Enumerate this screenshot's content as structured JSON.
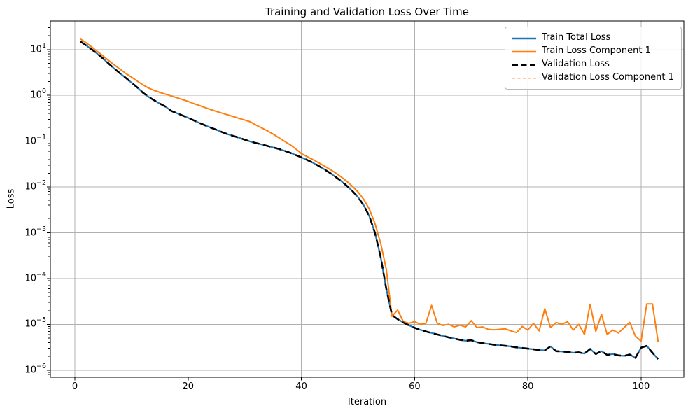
{
  "figure": {
    "title": "Training and Validation Loss Over Time",
    "xlabel": "Iteration",
    "ylabel": "Loss"
  },
  "chart_data": {
    "type": "line",
    "title": "Training and Validation Loss Over Time",
    "xlabel": "Iteration",
    "ylabel": "Loss",
    "grid": true,
    "legend_position": "upper right",
    "colors": {
      "grid": "#b0b0b0",
      "axis": "#000000",
      "blue": "#1f77b4",
      "orange": "#ff7f0e"
    },
    "x_axis": {
      "ticks": [
        0,
        20,
        40,
        60,
        80,
        100
      ],
      "lim": [
        -4.33,
        107.55
      ]
    },
    "y_axis": {
      "scale": "log",
      "tick_exponents": [
        1,
        0,
        -1,
        -2,
        -3,
        -4,
        -5,
        -6
      ],
      "lim": [
        7e-07,
        42
      ]
    },
    "x": [
      1,
      2,
      3,
      4,
      5,
      6,
      7,
      8,
      9,
      10,
      11,
      12,
      13,
      14,
      15,
      16,
      17,
      18,
      19,
      20,
      21,
      22,
      23,
      24,
      25,
      26,
      27,
      28,
      29,
      30,
      31,
      32,
      33,
      34,
      35,
      36,
      37,
      38,
      39,
      40,
      41,
      42,
      43,
      44,
      45,
      46,
      47,
      48,
      49,
      50,
      51,
      52,
      53,
      54,
      55,
      56,
      57,
      58,
      59,
      60,
      61,
      62,
      63,
      64,
      65,
      66,
      67,
      68,
      69,
      70,
      71,
      72,
      73,
      74,
      75,
      76,
      77,
      78,
      79,
      80,
      81,
      82,
      83,
      84,
      85,
      86,
      87,
      88,
      89,
      90,
      91,
      92,
      93,
      94,
      95,
      96,
      97,
      98,
      99,
      100,
      101,
      102,
      103
    ],
    "series": [
      {
        "name": "Train Total Loss",
        "color": "#1f77b4",
        "style": "solid",
        "width": 2.2,
        "values": [
          15.0,
          12.3,
          10.0,
          8.0,
          6.3,
          4.9,
          3.8,
          3.0,
          2.4,
          1.9,
          1.5,
          1.15,
          0.93,
          0.78,
          0.66,
          0.57,
          0.46,
          0.41,
          0.365,
          0.325,
          0.285,
          0.25,
          0.222,
          0.198,
          0.177,
          0.158,
          0.142,
          0.13,
          0.119,
          0.108,
          0.098,
          0.091,
          0.085,
          0.079,
          0.073,
          0.068,
          0.062,
          0.056,
          0.05,
          0.0445,
          0.039,
          0.034,
          0.029,
          0.0245,
          0.0205,
          0.0168,
          0.0136,
          0.0107,
          0.0082,
          0.006,
          0.004,
          0.0023,
          0.001,
          0.0003,
          6e-05,
          1.6e-05,
          1.3e-05,
          1.1e-05,
          9.5e-06,
          8.4e-06,
          7.6e-06,
          7e-06,
          6.5e-06,
          6e-06,
          5.6e-06,
          5.2e-06,
          4.9e-06,
          4.6e-06,
          4.4e-06,
          4.5e-06,
          4.1e-06,
          3.9e-06,
          3.75e-06,
          3.6e-06,
          3.5e-06,
          3.4e-06,
          3.3e-06,
          3.15e-06,
          3.05e-06,
          2.95e-06,
          2.85e-06,
          2.75e-06,
          2.7e-06,
          3.3e-06,
          2.6e-06,
          2.55e-06,
          2.5e-06,
          2.4e-06,
          2.45e-06,
          2.3e-06,
          2.9e-06,
          2.25e-06,
          2.6e-06,
          2.15e-06,
          2.25e-06,
          2.1e-06,
          2.05e-06,
          2.2e-06,
          1.85e-06,
          3.1e-06,
          3.4e-06,
          2.4e-06,
          1.75e-06
        ]
      },
      {
        "name": "Train Loss Component 1",
        "color": "#ff7f0e",
        "style": "solid",
        "width": 2.0,
        "values": [
          17.0,
          14.0,
          11.3,
          9.0,
          7.2,
          5.7,
          4.6,
          3.7,
          3.0,
          2.5,
          2.05,
          1.7,
          1.45,
          1.28,
          1.16,
          1.06,
          0.97,
          0.89,
          0.81,
          0.74,
          0.66,
          0.6,
          0.54,
          0.49,
          0.445,
          0.41,
          0.375,
          0.345,
          0.315,
          0.29,
          0.265,
          0.225,
          0.195,
          0.168,
          0.143,
          0.12,
          0.1,
          0.084,
          0.068,
          0.054,
          0.046,
          0.04,
          0.034,
          0.029,
          0.0245,
          0.0205,
          0.0168,
          0.0134,
          0.0104,
          0.0078,
          0.0054,
          0.0033,
          0.0016,
          0.0006,
          0.00016,
          1.5e-05,
          2.05e-05,
          1.15e-05,
          1.05e-05,
          1.15e-05,
          1e-05,
          1.05e-05,
          2.6e-05,
          1.05e-05,
          9.5e-06,
          1e-05,
          8.8e-06,
          9.6e-06,
          8.8e-06,
          1.2e-05,
          8.5e-06,
          8.8e-06,
          7.8e-06,
          7.6e-06,
          7.8e-06,
          8e-06,
          7.2e-06,
          6.6e-06,
          9e-06,
          7.5e-06,
          1.05e-05,
          7.2e-06,
          2.2e-05,
          8.5e-06,
          1.1e-05,
          1e-05,
          1.15e-05,
          7.5e-06,
          1e-05,
          6e-06,
          2.75e-05,
          7e-06,
          1.65e-05,
          6e-06,
          7.5e-06,
          6.5e-06,
          8.5e-06,
          1.1e-05,
          5.5e-06,
          4.3e-06,
          2.8e-05,
          2.8e-05,
          4.2e-06
        ]
      },
      {
        "name": "Validation Loss",
        "color": "#000000",
        "style": "dashed",
        "width": 2.6,
        "values": [
          15.0,
          12.3,
          10.0,
          8.0,
          6.3,
          4.9,
          3.8,
          3.0,
          2.4,
          1.9,
          1.5,
          1.15,
          0.93,
          0.78,
          0.66,
          0.57,
          0.46,
          0.41,
          0.365,
          0.325,
          0.285,
          0.25,
          0.222,
          0.198,
          0.177,
          0.158,
          0.142,
          0.13,
          0.119,
          0.108,
          0.098,
          0.091,
          0.085,
          0.079,
          0.073,
          0.068,
          0.062,
          0.056,
          0.05,
          0.0445,
          0.039,
          0.034,
          0.029,
          0.0245,
          0.0205,
          0.0168,
          0.0136,
          0.0107,
          0.0082,
          0.006,
          0.004,
          0.0023,
          0.001,
          0.0003,
          6e-05,
          1.6e-05,
          1.3e-05,
          1.1e-05,
          9.5e-06,
          8.4e-06,
          7.6e-06,
          7e-06,
          6.5e-06,
          6e-06,
          5.6e-06,
          5.2e-06,
          4.9e-06,
          4.6e-06,
          4.4e-06,
          4.5e-06,
          4.1e-06,
          3.9e-06,
          3.75e-06,
          3.6e-06,
          3.5e-06,
          3.4e-06,
          3.3e-06,
          3.15e-06,
          3.05e-06,
          2.95e-06,
          2.85e-06,
          2.75e-06,
          2.7e-06,
          3.3e-06,
          2.6e-06,
          2.55e-06,
          2.5e-06,
          2.4e-06,
          2.45e-06,
          2.3e-06,
          2.9e-06,
          2.25e-06,
          2.6e-06,
          2.15e-06,
          2.25e-06,
          2.1e-06,
          2.05e-06,
          2.2e-06,
          1.85e-06,
          3.1e-06,
          3.4e-06,
          2.4e-06,
          1.75e-06
        ]
      },
      {
        "name": "Validation Loss Component 1",
        "color": "#ff7f0e",
        "opacity": 0.45,
        "style": "dashed-fine",
        "width": 1.4,
        "values": [
          17.0,
          14.0,
          11.3,
          9.0,
          7.2,
          5.7,
          4.6,
          3.7,
          3.0,
          2.5,
          2.05,
          1.7,
          1.45,
          1.28,
          1.16,
          1.06,
          0.97,
          0.89,
          0.81,
          0.74,
          0.66,
          0.6,
          0.54,
          0.49,
          0.445,
          0.41,
          0.375,
          0.345,
          0.315,
          0.29,
          0.265,
          0.225,
          0.195,
          0.168,
          0.143,
          0.12,
          0.1,
          0.084,
          0.068,
          0.054,
          0.046,
          0.04,
          0.034,
          0.029,
          0.0245,
          0.0205,
          0.0168,
          0.0134,
          0.0104,
          0.0078,
          0.0054,
          0.0033,
          0.0016,
          0.0006,
          0.00016,
          1.5e-05,
          2.05e-05,
          1.15e-05,
          1.05e-05,
          1.15e-05,
          1e-05,
          1.05e-05,
          2.6e-05,
          1.05e-05,
          9.5e-06,
          1e-05,
          8.8e-06,
          9.6e-06,
          8.8e-06,
          1.2e-05,
          8.5e-06,
          8.8e-06,
          7.8e-06,
          7.6e-06,
          7.8e-06,
          8e-06,
          7.2e-06,
          6.6e-06,
          9e-06,
          7.5e-06,
          1.05e-05,
          7.2e-06,
          2.2e-05,
          8.5e-06,
          1.1e-05,
          1e-05,
          1.15e-05,
          7.5e-06,
          1e-05,
          6e-06,
          2.75e-05,
          7e-06,
          1.65e-05,
          6e-06,
          7.5e-06,
          6.5e-06,
          8.5e-06,
          1.1e-05,
          5.5e-06,
          4.3e-06,
          2.8e-05,
          2.8e-05,
          4.2e-06
        ]
      }
    ]
  }
}
